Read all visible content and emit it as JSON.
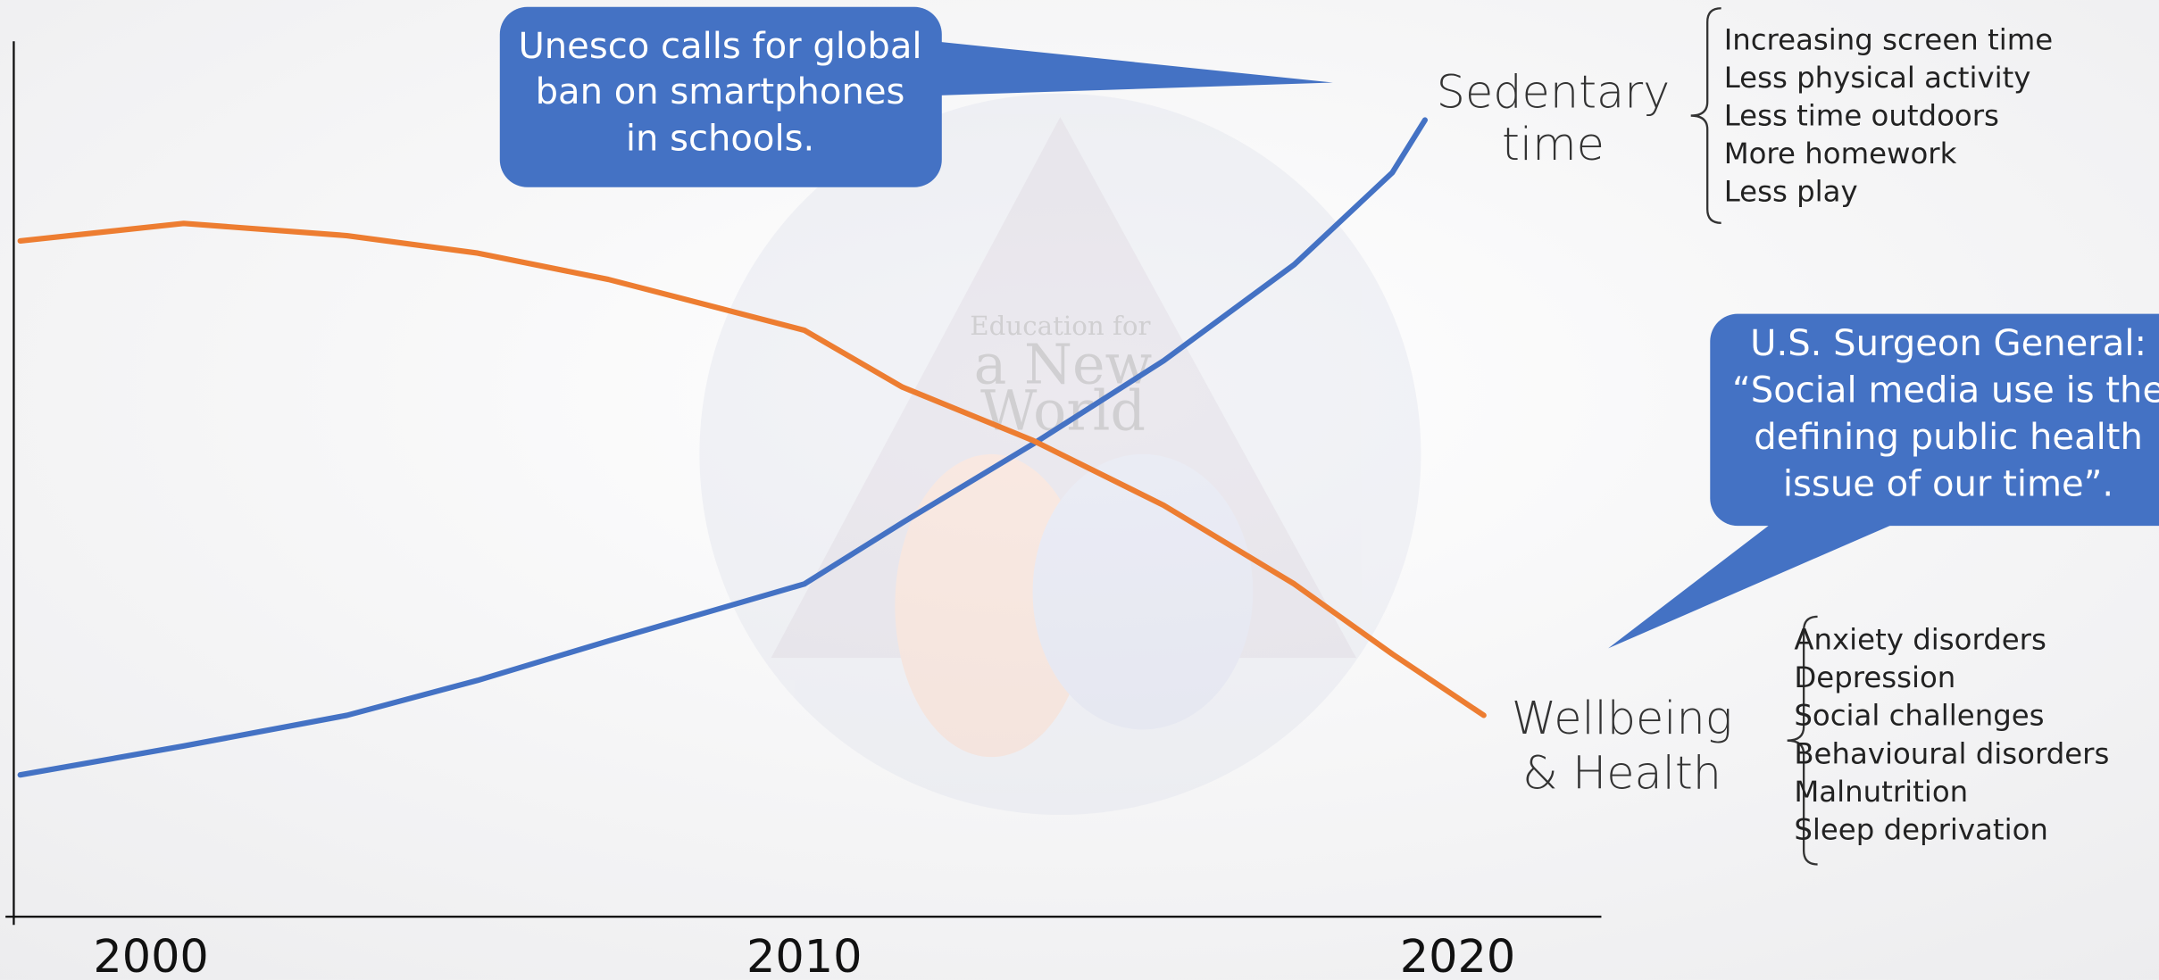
{
  "chart_data": {
    "type": "line",
    "x": [
      1998,
      2000.5,
      2003,
      2005,
      2007,
      2010,
      2011.5,
      2013.5,
      2015.5,
      2017.5,
      2019,
      2019.5,
      2020.4
    ],
    "xlim": [
      1997.9,
      2022.2
    ],
    "xticks": [
      2000,
      2010,
      2020
    ],
    "ylim": [
      0,
      100
    ],
    "series": [
      {
        "color": "#4472c4",
        "values": [
          16.2,
          19.5,
          23,
          27,
          31.5,
          38,
          45,
          54,
          63.5,
          74.5,
          85,
          91,
          null
        ]
      },
      {
        "color": "#ed7d31",
        "values": [
          77.2,
          79.2,
          77.8,
          75.8,
          72.8,
          67,
          60.5,
          54.4,
          47,
          38,
          30,
          27.5,
          23
        ]
      }
    ],
    "annotations": {
      "callouts": [
        {
          "lines": [
            "Unesco calls for global",
            "ban on smartphones",
            "in schools."
          ]
        },
        {
          "lines": [
            "U.S. Surgeon General:",
            "“Social media use is the",
            "defining public health",
            "issue of our time”."
          ]
        }
      ],
      "groups": [
        {
          "label": [
            "Sedentary",
            "time"
          ],
          "items": [
            "Increasing screen time",
            "Less physical activity",
            "Less time outdoors",
            "More homework",
            "Less play"
          ]
        },
        {
          "label": [
            "Wellbeing",
            "& Health"
          ],
          "items": [
            "Anxiety disorders",
            "Depression",
            "Social challenges",
            "Behavioural disorders",
            "Malnutrition",
            "Sleep deprivation"
          ]
        }
      ],
      "watermark": [
        "Education for",
        "a New",
        "World"
      ]
    }
  }
}
